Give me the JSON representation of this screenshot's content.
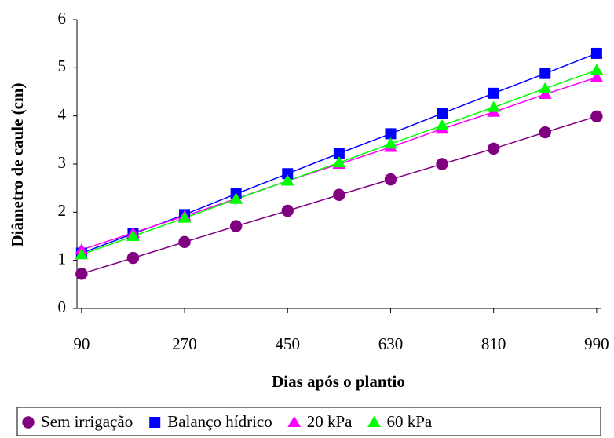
{
  "chart_data": {
    "type": "line",
    "x_label": "Dias após o plantio",
    "y_label": "Diâmetro de caule (cm)",
    "x": [
      90,
      180,
      270,
      360,
      450,
      540,
      630,
      720,
      810,
      900,
      990
    ],
    "xlim": [
      82,
      997
    ],
    "xticks": [
      90,
      270,
      450,
      630,
      810,
      990
    ],
    "ylim": [
      0,
      6
    ],
    "yticks": [
      0,
      1,
      2,
      3,
      4,
      5,
      6
    ],
    "legend": "bottom",
    "series": [
      {
        "name": "Sem irrigação",
        "color": "#800080",
        "marker": "circle",
        "values": [
          0.72,
          1.05,
          1.38,
          1.71,
          2.03,
          2.36,
          2.68,
          3.0,
          3.32,
          3.66,
          3.99
        ]
      },
      {
        "name": "Balanço hídrico",
        "color": "#0000ff",
        "marker": "square",
        "values": [
          1.15,
          1.55,
          1.95,
          2.38,
          2.8,
          3.22,
          3.63,
          4.05,
          4.47,
          4.88,
          5.3
        ]
      },
      {
        "name": "20 kPa",
        "color": "#ff00ff",
        "marker": "triangle",
        "values": [
          1.22,
          1.57,
          1.92,
          2.28,
          2.65,
          3.0,
          3.35,
          3.73,
          4.08,
          4.45,
          4.8
        ]
      },
      {
        "name": "60 kPa",
        "color": "#00ff00",
        "marker": "triangle",
        "values": [
          1.12,
          1.5,
          1.88,
          2.27,
          2.65,
          3.03,
          3.42,
          3.8,
          4.18,
          4.57,
          4.95
        ]
      }
    ]
  }
}
